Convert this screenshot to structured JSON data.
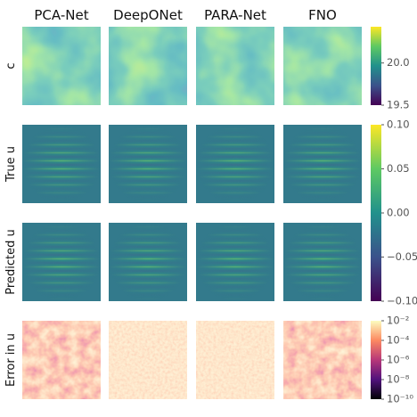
{
  "columns": [
    "PCA-Net",
    "DeepONet",
    "PARA-Net",
    "FNO"
  ],
  "rows": [
    {
      "label": "c"
    },
    {
      "label": "True u"
    },
    {
      "label": "Predicted u"
    },
    {
      "label": "Error in u"
    }
  ],
  "colorbars": [
    {
      "scale": "linear",
      "colormap": "viridis",
      "lim": [
        19.5,
        20.43
      ],
      "ticks": [
        {
          "value": 20.0,
          "label": "20.0"
        },
        19.5
      ]
    },
    {
      "scale": "linear",
      "colormap": "viridis",
      "lim": [
        -0.1,
        0.1
      ],
      "ticks": [
        {
          "value": 0.1,
          "label": "0.10"
        },
        0.05,
        {
          "value": 0,
          "label": "0.00"
        },
        {
          "value": -0.05,
          "label": "−0.05"
        },
        {
          "value": -0.1,
          "label": "−0.10"
        }
      ]
    },
    {
      "scale": "log",
      "colormap": "magma",
      "lim": [
        1e-10,
        0.01
      ],
      "ticks": [
        {
          "value": 0.01,
          "label": "10⁻²"
        },
        {
          "value": 0.0001,
          "label": "10⁻⁴"
        },
        {
          "value": 1e-06,
          "label": "10⁻⁶"
        },
        {
          "value": 1e-08,
          "label": "10⁻⁸"
        },
        {
          "value": 1e-10,
          "label": "10⁻¹⁰"
        }
      ]
    }
  ]
}
